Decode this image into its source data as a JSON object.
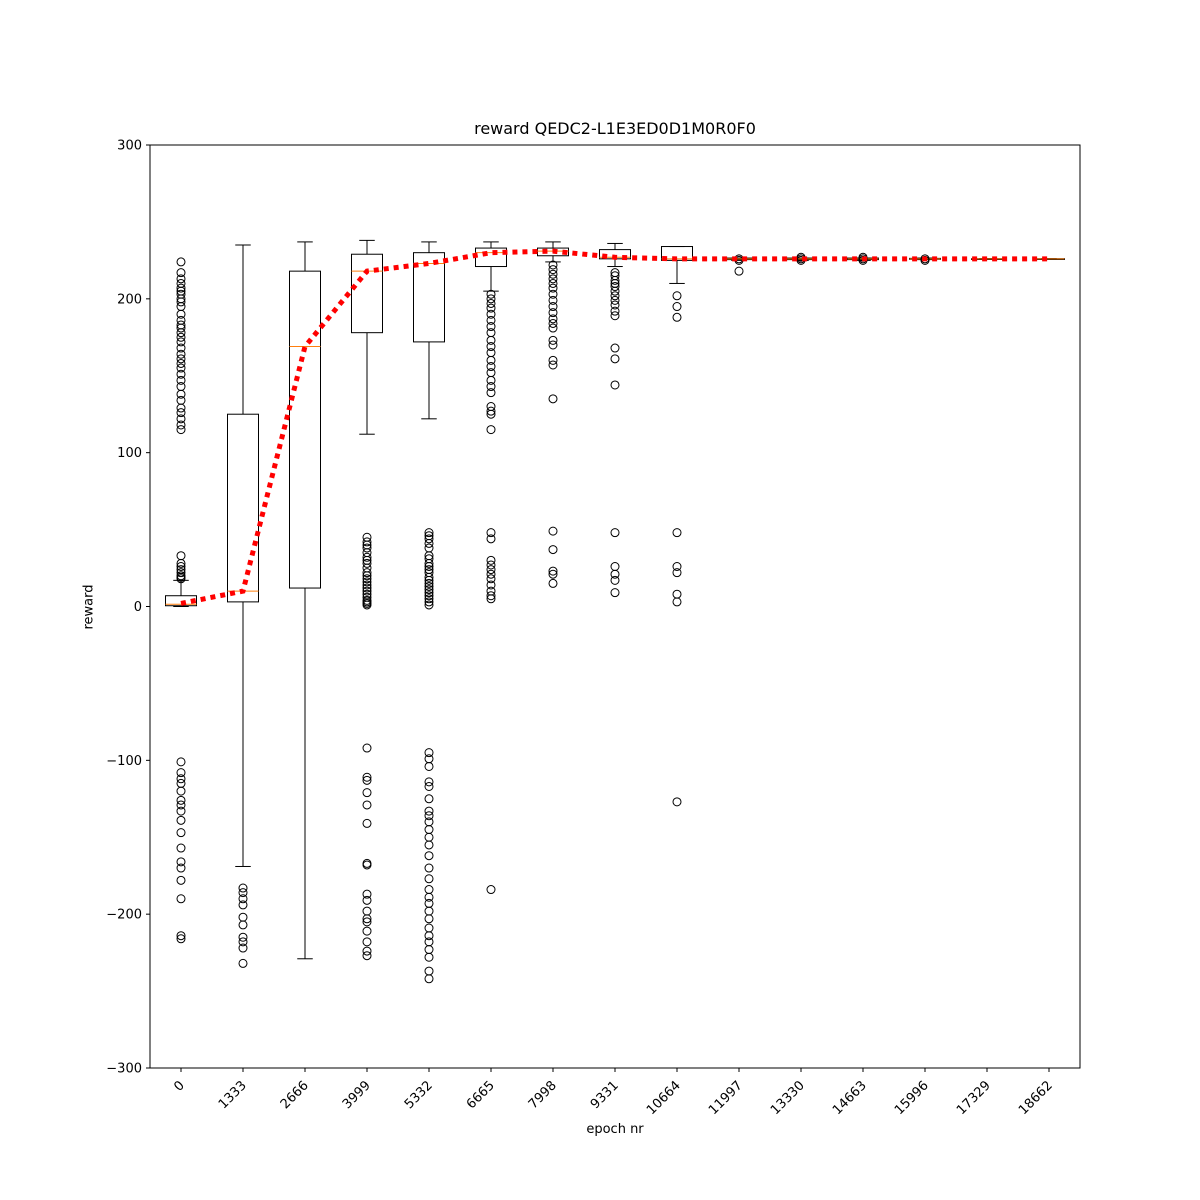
{
  "chart_data": {
    "type": "box",
    "title": "reward QEDC2-L1E3ED0D1M0R0F0",
    "xlabel": "epoch nr",
    "ylabel": "reward",
    "ylim": [
      -300,
      300
    ],
    "yticks": [
      -300,
      -200,
      -100,
      0,
      100,
      200,
      300
    ],
    "ytick_labels": [
      "−300",
      "−200",
      "−100",
      "0",
      "100",
      "200",
      "300"
    ],
    "categories": [
      "0",
      "1333",
      "2666",
      "3999",
      "5332",
      "6665",
      "7998",
      "9331",
      "10664",
      "11997",
      "13330",
      "14663",
      "15996",
      "17329",
      "18662"
    ],
    "grid": false,
    "boxes": [
      {
        "whislo": 0,
        "q1": 0.5,
        "med": 1.5,
        "q3": 7,
        "whishi": 17,
        "fliers": [
          224,
          217,
          213,
          210,
          207,
          205,
          203,
          200,
          198,
          195,
          190,
          186,
          183,
          181,
          178,
          175,
          172,
          168,
          164,
          161,
          158,
          155,
          151,
          147,
          143,
          138,
          134,
          129,
          126,
          122,
          118,
          115,
          33,
          28,
          26,
          24,
          22,
          20,
          19,
          18,
          -101,
          -108,
          -112,
          -115,
          -120,
          -126,
          -129,
          -133,
          -139,
          -147,
          -157,
          -166,
          -170,
          -178,
          -190,
          -214,
          -216
        ]
      },
      {
        "whislo": -169,
        "q1": 3,
        "med": 10,
        "q3": 125,
        "whishi": 235,
        "fliers": [
          -183,
          -186,
          -190,
          -194,
          -202,
          -207,
          -215,
          -218,
          -222,
          -232
        ]
      },
      {
        "whislo": -229,
        "q1": 12,
        "med": 169,
        "q3": 218,
        "whishi": 237,
        "fliers": []
      },
      {
        "whislo": 112,
        "q1": 178,
        "med": 218,
        "q3": 229,
        "whishi": 238,
        "fliers": [
          45,
          42,
          40,
          38,
          35,
          32,
          30,
          28,
          25,
          22,
          20,
          18,
          16,
          14,
          12,
          10,
          8,
          6,
          4,
          3,
          2,
          1,
          -92,
          -111,
          -113,
          -121,
          -129,
          -141,
          -167,
          -168,
          -187,
          -191,
          -198,
          -203,
          -205,
          -211,
          -218,
          -224,
          -227
        ]
      },
      {
        "whislo": 122,
        "q1": 172,
        "med": 223,
        "q3": 230,
        "whishi": 237,
        "fliers": [
          48,
          46,
          44,
          41,
          38,
          33,
          31,
          28,
          26,
          24,
          22,
          19,
          17,
          15,
          13,
          11,
          9,
          7,
          5,
          3,
          1,
          -95,
          -99,
          -104,
          -114,
          -117,
          -125,
          -133,
          -136,
          -140,
          -145,
          -150,
          -155,
          -162,
          -170,
          -177,
          -184,
          -189,
          -193,
          -198,
          -203,
          -209,
          -214,
          -218,
          -223,
          -228,
          -237,
          -242
        ]
      },
      {
        "whislo": 205,
        "q1": 221,
        "med": 230,
        "q3": 233,
        "whishi": 237,
        "fliers": [
          203,
          200,
          197,
          194,
          190,
          186,
          182,
          178,
          173,
          169,
          165,
          160,
          156,
          152,
          147,
          143,
          139,
          130,
          127,
          125,
          115,
          48,
          44,
          30,
          27,
          24,
          21,
          18,
          14,
          10,
          7,
          5,
          -184
        ]
      },
      {
        "whislo": 224,
        "q1": 228,
        "med": 231,
        "q3": 233,
        "whishi": 237,
        "fliers": [
          222,
          219,
          216,
          213,
          210,
          207,
          203,
          199,
          195,
          191,
          187,
          184,
          181,
          173,
          170,
          160,
          157,
          135,
          49,
          37,
          23,
          21,
          15
        ]
      },
      {
        "whislo": 221,
        "q1": 226,
        "med": 227,
        "q3": 232,
        "whishi": 236,
        "fliers": [
          217,
          215,
          212,
          210,
          208,
          205,
          202,
          199,
          196,
          192,
          189,
          168,
          161,
          144,
          48,
          26,
          21,
          17,
          9
        ]
      },
      {
        "whislo": 210,
        "q1": 225,
        "med": 226,
        "q3": 234,
        "whishi": 234,
        "fliers": [
          202,
          195,
          188,
          48,
          26,
          22,
          8,
          3,
          -127
        ]
      },
      {
        "whislo": 225,
        "q1": 225.5,
        "med": 226,
        "q3": 226.5,
        "whishi": 226.5,
        "fliers": [
          226,
          225,
          218
        ]
      },
      {
        "whislo": 225,
        "q1": 225.5,
        "med": 226,
        "q3": 226.5,
        "whishi": 226.5,
        "fliers": [
          227,
          226,
          225
        ]
      },
      {
        "whislo": 225,
        "q1": 225.5,
        "med": 226,
        "q3": 226.5,
        "whishi": 226.5,
        "fliers": [
          227,
          226,
          225
        ]
      },
      {
        "whislo": 225.5,
        "q1": 225.7,
        "med": 226,
        "q3": 226.3,
        "whishi": 226.5,
        "fliers": [
          226,
          225
        ]
      },
      {
        "whislo": 225.8,
        "q1": 225.9,
        "med": 226,
        "q3": 226.1,
        "whishi": 226.2,
        "fliers": []
      },
      {
        "whislo": 225.8,
        "q1": 225.9,
        "med": 226,
        "q3": 226.1,
        "whishi": 226.2,
        "fliers": []
      }
    ],
    "trend_line": {
      "values": [
        2,
        10,
        169,
        218,
        223,
        230,
        231,
        227,
        226,
        226,
        226,
        226,
        226,
        226,
        226
      ],
      "color": "#ff0000",
      "style": "dotted"
    },
    "colors": {
      "box_edge": "#000000",
      "median": "#ff7f0e",
      "trend": "#ff0000"
    }
  }
}
